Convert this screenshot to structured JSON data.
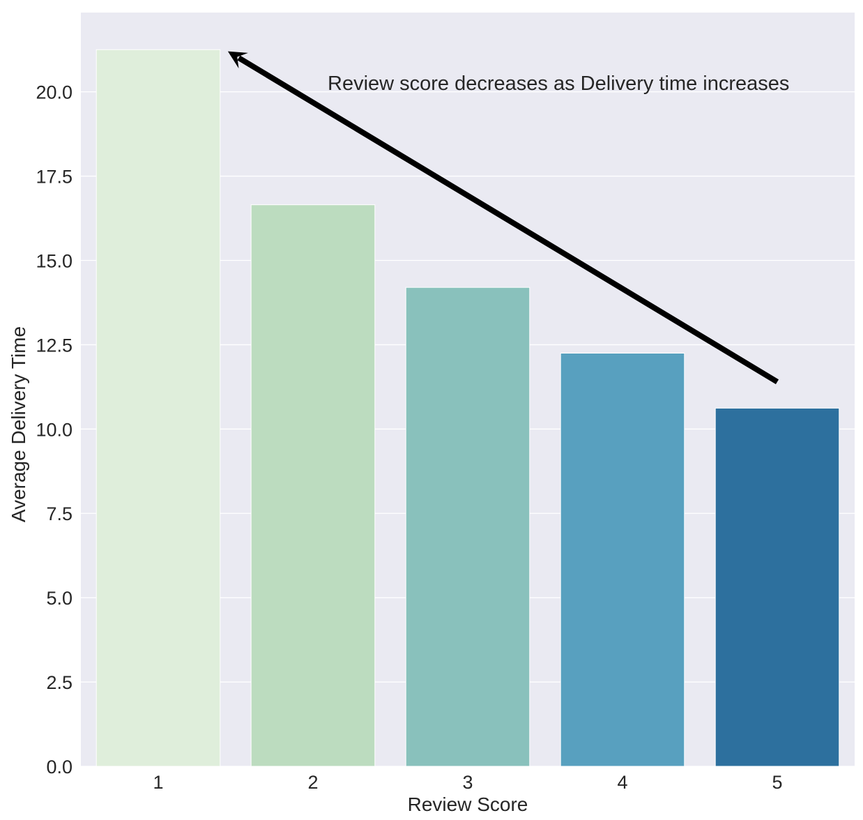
{
  "chart_data": {
    "type": "bar",
    "categories": [
      "1",
      "2",
      "3",
      "4",
      "5"
    ],
    "values": [
      21.25,
      16.65,
      14.2,
      12.25,
      10.62
    ],
    "xlabel": "Review Score",
    "ylabel": "Average Delivery Time",
    "ylim": [
      0,
      22.35
    ],
    "yticks": [
      "0.0",
      "2.5",
      "5.0",
      "7.5",
      "10.0",
      "12.5",
      "15.0",
      "17.5",
      "20.0"
    ],
    "ytick_values": [
      0,
      2.5,
      5,
      7.5,
      10,
      12.5,
      15,
      17.5,
      20
    ],
    "grid": true,
    "colors": [
      "#dfeedb",
      "#bcdcbf",
      "#89c1bc",
      "#58a0bf",
      "#2d709e"
    ],
    "background_color": "#eaeaf2",
    "annotation": {
      "text": "Review score decreases as Delivery time increases",
      "arrow_from": {
        "x": 5,
        "y": 11.4
      },
      "arrow_to": {
        "x": 1.45,
        "y": 21.2
      }
    }
  }
}
